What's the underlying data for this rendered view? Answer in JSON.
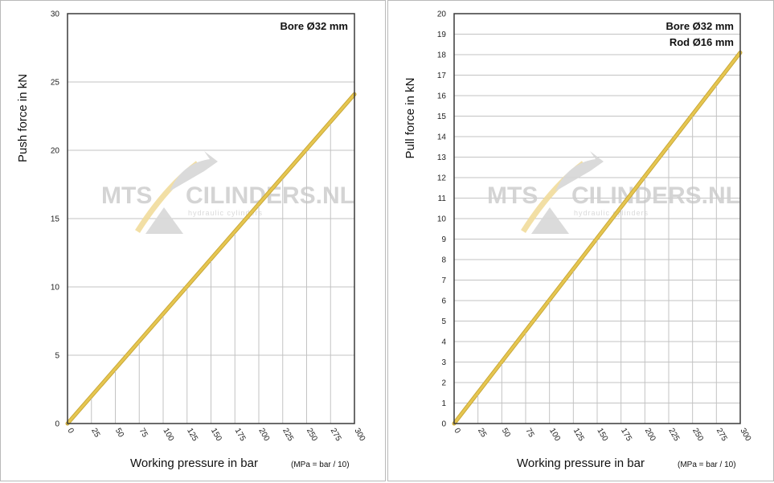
{
  "watermark": {
    "brand_left": "MTS",
    "brand_right": "CILINDERS.NL",
    "tagline": "hydraulic cylinders"
  },
  "colors": {
    "line": "#e6c64f",
    "line_edge": "#c9a83a",
    "grid": "#c3c3c3",
    "frame": "#3a3a3a"
  },
  "chart_data": [
    {
      "type": "line",
      "xlabel": "Working pressure in bar",
      "xlabel_note": "(MPa = bar / 10)",
      "ylabel": "Push force in kN",
      "legend": [
        "Bore Ø32 mm"
      ],
      "legend_placement": "top-right",
      "grid": true,
      "xlim": [
        0,
        300
      ],
      "ylim": [
        0,
        30
      ],
      "x_ticks": [
        0,
        25,
        50,
        75,
        100,
        125,
        150,
        175,
        200,
        225,
        250,
        275,
        300
      ],
      "y_ticks": [
        0,
        5,
        10,
        15,
        20,
        25,
        30
      ],
      "series": [
        {
          "x": [
            0,
            300
          ],
          "values": [
            0,
            24.1
          ]
        }
      ]
    },
    {
      "type": "line",
      "xlabel": "Working pressure in bar",
      "xlabel_note": "(MPa = bar / 10)",
      "ylabel": "Pull force in kN",
      "legend": [
        "Bore Ø32 mm",
        "Rod  Ø16 mm"
      ],
      "legend_placement": "top-right",
      "grid": true,
      "xlim": [
        0,
        300
      ],
      "ylim": [
        0,
        20
      ],
      "x_ticks": [
        0,
        25,
        50,
        75,
        100,
        125,
        150,
        175,
        200,
        225,
        250,
        275,
        300
      ],
      "y_ticks": [
        0,
        1,
        2,
        3,
        4,
        5,
        6,
        7,
        8,
        9,
        10,
        11,
        12,
        13,
        14,
        15,
        16,
        17,
        18,
        19,
        20
      ],
      "series": [
        {
          "x": [
            0,
            300
          ],
          "values": [
            0,
            18.1
          ]
        }
      ]
    }
  ]
}
